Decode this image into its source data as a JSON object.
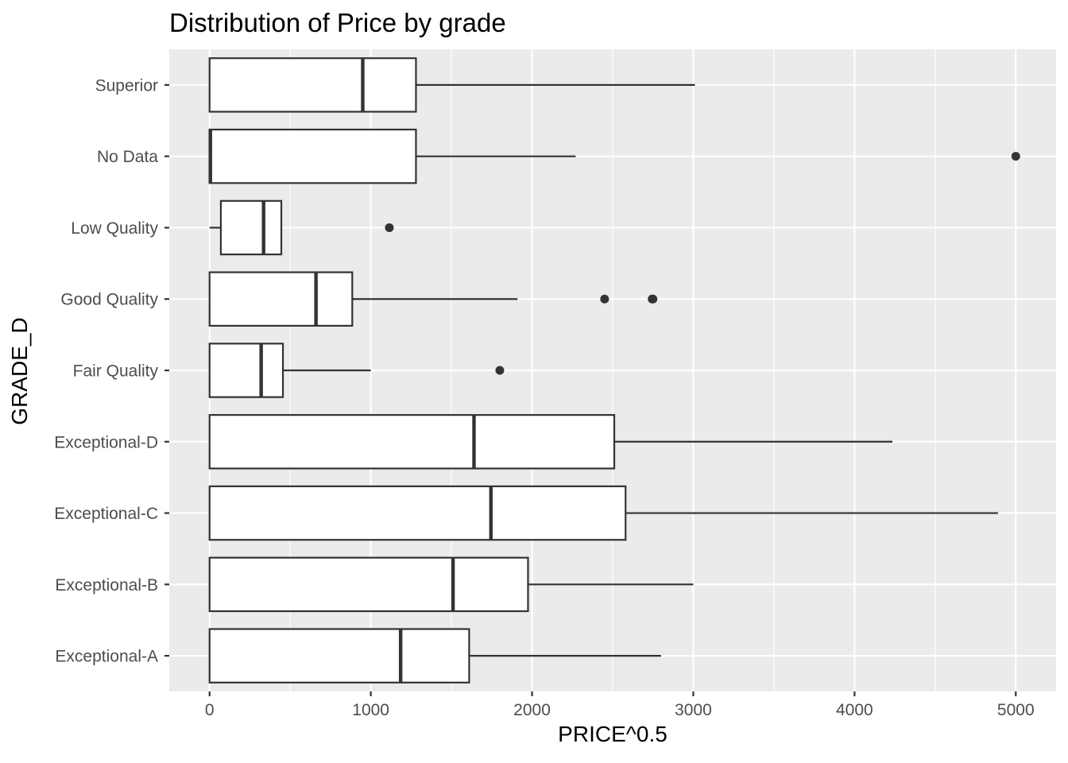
{
  "chart_data": {
    "type": "boxplot",
    "orientation": "horizontal",
    "title": "Distribution of Price by grade",
    "xlabel": "PRICE^0.5",
    "ylabel": "GRADE_D",
    "xlim": [
      -250,
      5250
    ],
    "x_ticks": [
      0,
      1000,
      2000,
      3000,
      4000,
      5000
    ],
    "grid": true,
    "categories": [
      "Exceptional-A",
      "Exceptional-B",
      "Exceptional-C",
      "Exceptional-D",
      "Fair Quality",
      "Good Quality",
      "Low Quality",
      "No Data",
      "Superior"
    ],
    "boxes": [
      {
        "category": "Exceptional-A",
        "lower_whisker": 0,
        "q1": 0,
        "median": 1185,
        "q3": 1610,
        "upper_whisker": 2800,
        "outliers": []
      },
      {
        "category": "Exceptional-B",
        "lower_whisker": 0,
        "q1": 0,
        "median": 1510,
        "q3": 1975,
        "upper_whisker": 3000,
        "outliers": []
      },
      {
        "category": "Exceptional-C",
        "lower_whisker": 0,
        "q1": 0,
        "median": 1745,
        "q3": 2580,
        "upper_whisker": 4890,
        "outliers": []
      },
      {
        "category": "Exceptional-D",
        "lower_whisker": 0,
        "q1": 0,
        "median": 1640,
        "q3": 2510,
        "upper_whisker": 4235,
        "outliers": []
      },
      {
        "category": "Fair Quality",
        "lower_whisker": 0,
        "q1": 0,
        "median": 320,
        "q3": 455,
        "upper_whisker": 1000,
        "outliers": [
          1800
        ]
      },
      {
        "category": "Good Quality",
        "lower_whisker": 0,
        "q1": 0,
        "median": 660,
        "q3": 885,
        "upper_whisker": 1910,
        "outliers": [
          2450,
          2745,
          2750
        ]
      },
      {
        "category": "Low Quality",
        "lower_whisker": 0,
        "q1": 70,
        "median": 335,
        "q3": 445,
        "upper_whisker": 450,
        "outliers": [
          1115
        ]
      },
      {
        "category": "No Data",
        "lower_whisker": 0,
        "q1": 0,
        "median": 5,
        "q3": 1280,
        "upper_whisker": 2270,
        "outliers": [
          5000
        ]
      },
      {
        "category": "Superior",
        "lower_whisker": 0,
        "q1": 0,
        "median": 950,
        "q3": 1280,
        "upper_whisker": 3010,
        "outliers": []
      }
    ],
    "colors": {
      "panel_background": "#ebebeb",
      "grid_major": "#ffffff",
      "box_fill": "#ffffff",
      "box_line": "#333333",
      "tick_label": "#4d4d4d"
    }
  }
}
